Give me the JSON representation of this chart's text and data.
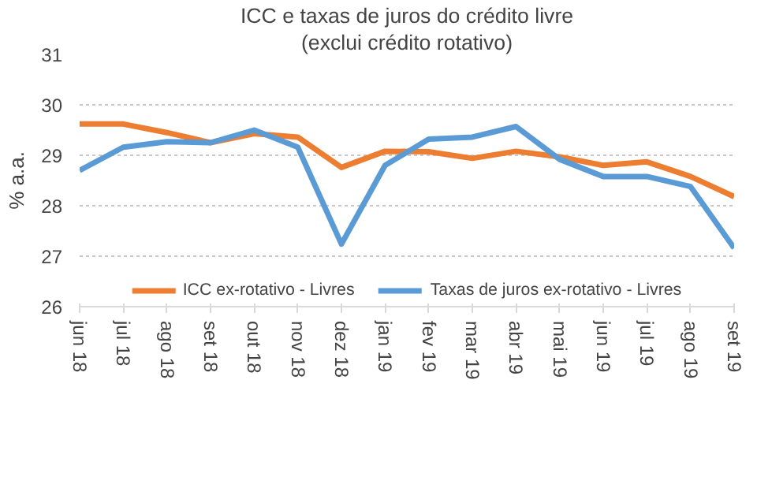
{
  "chart_data": {
    "type": "line",
    "title": "ICC e taxas de juros do crédito livre",
    "subtitle": "(exclui crédito rotativo)",
    "ylabel": "% a.a.",
    "categories": [
      "jun 18",
      "jul 18",
      "ago 18",
      "set 18",
      "out 18",
      "nov 18",
      "dez 18",
      "jan 19",
      "fev 19",
      "mar 19",
      "abr 19",
      "mai 19",
      "jun 19",
      "jul 19",
      "ago 19",
      "set 19"
    ],
    "series": [
      {
        "name": "ICC ex-rotativo - Livres",
        "color": "#ed7d31",
        "values": [
          29.62,
          29.62,
          29.45,
          29.25,
          29.43,
          29.36,
          28.76,
          29.08,
          29.07,
          28.94,
          29.08,
          28.97,
          28.8,
          28.87,
          28.58,
          28.18
        ]
      },
      {
        "name": "Taxas de juros ex-rotativo - Livres",
        "color": "#5b9bd5",
        "values": [
          28.7,
          29.16,
          29.27,
          29.25,
          29.5,
          29.16,
          27.24,
          28.8,
          29.32,
          29.36,
          29.57,
          28.92,
          28.58,
          28.58,
          28.38,
          27.16
        ]
      }
    ],
    "ylim": [
      26,
      31
    ],
    "yticks": [
      26,
      27,
      28,
      29,
      30,
      31
    ],
    "grid": "y",
    "legend": "bottom",
    "marker": "none",
    "line_style": "solid"
  }
}
